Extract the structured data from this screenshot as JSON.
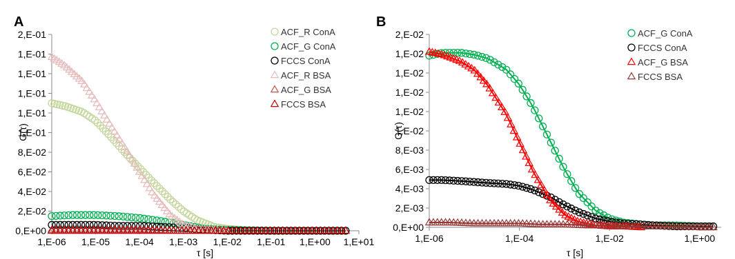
{
  "chart_data": [
    {
      "type": "scatter",
      "panel_label": "A",
      "xlabel": "τ [s]",
      "ylabel": "G(τ)",
      "x_scale": "log",
      "xlim": [
        1e-06,
        10
      ],
      "ylim": [
        0,
        0.2
      ],
      "x_ticks": [
        1e-06,
        1e-05,
        0.0001,
        0.001,
        0.01,
        0.1,
        1,
        10
      ],
      "x_tick_labels": [
        "1,E-06",
        "1,E-05",
        "1,E-04",
        "1,E-03",
        "1,E-02",
        "1,E-01",
        "1,E+00",
        "1,E+01"
      ],
      "y_ticks": [
        0,
        0.02,
        0.04,
        0.06,
        0.08,
        0.1,
        0.12,
        0.14,
        0.16,
        0.18,
        0.2
      ],
      "y_tick_labels": [
        "0,E+00",
        "2,E-02",
        "4,E-02",
        "6,E-02",
        "8,E-02",
        "1,E-01",
        "1,E-01",
        "1,E-01",
        "1,E-01",
        "1,E-01",
        "2,E-01"
      ],
      "grid": false,
      "legend_position": "top-right",
      "series": [
        {
          "name": "ACF_R ConA",
          "marker": "circle",
          "color": "#c3d69b",
          "x": [
            1e-06,
            2e-06,
            5e-06,
            1e-05,
            2e-05,
            5e-05,
            0.0001,
            0.0002,
            0.0005,
            0.001,
            0.002,
            0.005,
            0.01,
            0.02
          ],
          "y": [
            0.13,
            0.127,
            0.121,
            0.112,
            0.098,
            0.078,
            0.064,
            0.05,
            0.032,
            0.02,
            0.011,
            0.004,
            0.002,
            0.001
          ]
        },
        {
          "name": "ACF_G ConA",
          "marker": "circle",
          "color": "#00b050",
          "x": [
            1e-06,
            3e-06,
            1e-05,
            3e-05,
            0.0001,
            0.0003,
            0.001,
            0.003,
            0.01,
            0.1,
            1,
            5
          ],
          "y": [
            0.015,
            0.016,
            0.016,
            0.015,
            0.013,
            0.01,
            0.006,
            0.002,
            0.001,
            0.0,
            0.0,
            0.0
          ]
        },
        {
          "name": "FCCS ConA",
          "marker": "circle",
          "color": "#000000",
          "x": [
            1e-06,
            3e-06,
            1e-05,
            3e-05,
            0.0001,
            0.0003,
            0.001,
            0.003,
            0.01,
            0.1,
            1,
            5
          ],
          "y": [
            0.006,
            0.006,
            0.006,
            0.005,
            0.005,
            0.004,
            0.003,
            0.001,
            0.0,
            0.0,
            0.0,
            0.0
          ]
        },
        {
          "name": "ACF_R BSA",
          "marker": "triangle",
          "color": "#e6b9b8",
          "x": [
            1e-06,
            2e-06,
            5e-06,
            1e-05,
            2e-05,
            5e-05,
            0.0001,
            0.0002,
            0.0005,
            0.001,
            0.002,
            0.005,
            0.01
          ],
          "y": [
            0.177,
            0.168,
            0.152,
            0.132,
            0.11,
            0.082,
            0.06,
            0.038,
            0.016,
            0.006,
            0.002,
            0.001,
            0.0
          ]
        },
        {
          "name": "ACF_G BSA",
          "marker": "triangle",
          "color": "#c0504d",
          "x": [
            1e-06,
            1e-05,
            0.0001,
            0.001,
            0.01,
            0.1,
            1,
            5
          ],
          "y": [
            0.001,
            0.001,
            0.001,
            0.0,
            0.0,
            0.0,
            0.0,
            0.0
          ]
        },
        {
          "name": "FCCS BSA",
          "marker": "triangle",
          "color": "#c00000",
          "x": [
            1e-06,
            1e-05,
            0.0001,
            0.001,
            0.01,
            0.1,
            1,
            5
          ],
          "y": [
            0.0,
            0.0,
            0.0,
            0.0,
            0.0,
            0.0,
            0.0,
            0.0
          ]
        }
      ]
    },
    {
      "type": "scatter",
      "panel_label": "B",
      "xlabel": "τ [s]",
      "ylabel": "G(τ)",
      "x_scale": "log",
      "xlim": [
        1e-06,
        3
      ],
      "ylim": [
        0,
        0.02
      ],
      "x_ticks": [
        1e-06,
        0.0001,
        0.01,
        1
      ],
      "x_tick_labels": [
        "1,E-06",
        "1,E-04",
        "1,E-02",
        "1,E+00"
      ],
      "y_ticks": [
        0,
        0.002,
        0.004,
        0.006,
        0.008,
        0.01,
        0.012,
        0.014,
        0.016,
        0.018,
        0.02
      ],
      "y_tick_labels": [
        "0,E+00",
        "2,E-03",
        "4,E-03",
        "6,E-03",
        "8,E-03",
        "1,E-02",
        "1,E-02",
        "1,E-02",
        "1,E-02",
        "1,E-02",
        "2,E-02"
      ],
      "grid": false,
      "legend_position": "top-right",
      "series": [
        {
          "name": "ACF_G ConA",
          "marker": "circle",
          "color": "#00b050",
          "fit_line": true,
          "x": [
            1e-06,
            2e-06,
            5e-06,
            1e-05,
            2e-05,
            5e-05,
            0.0001,
            0.0002,
            0.0005,
            0.001,
            0.002,
            0.005,
            0.01,
            0.02,
            0.05,
            0.1,
            0.3,
            1,
            2
          ],
          "y": [
            0.0178,
            0.0181,
            0.0181,
            0.0179,
            0.0175,
            0.0164,
            0.0148,
            0.0125,
            0.0088,
            0.006,
            0.0036,
            0.0017,
            0.0009,
            0.0005,
            0.0003,
            0.0002,
            0.0002,
            0.0001,
            0.0001
          ]
        },
        {
          "name": "FCCS ConA",
          "marker": "circle",
          "color": "#000000",
          "fit_line": true,
          "x": [
            1e-06,
            2e-06,
            5e-06,
            1e-05,
            2e-05,
            5e-05,
            0.0001,
            0.0002,
            0.0005,
            0.001,
            0.002,
            0.005,
            0.01,
            0.02,
            0.05,
            0.1,
            0.3,
            1,
            2
          ],
          "y": [
            0.0049,
            0.0049,
            0.0048,
            0.0047,
            0.0046,
            0.0045,
            0.0043,
            0.0039,
            0.0031,
            0.0023,
            0.0016,
            0.0009,
            0.0006,
            0.0004,
            0.0003,
            0.0002,
            0.0001,
            0.0001,
            0.0001
          ]
        },
        {
          "name": "ACF_G BSA",
          "marker": "triangle",
          "color": "#ff0000",
          "fit_line": true,
          "x": [
            1e-06,
            2e-06,
            5e-06,
            1e-05,
            2e-05,
            5e-05,
            0.0001,
            0.0002,
            0.0005,
            0.001,
            0.002,
            0.005,
            0.01,
            0.02,
            0.05
          ],
          "y": [
            0.0182,
            0.0179,
            0.0172,
            0.0163,
            0.0147,
            0.0118,
            0.0088,
            0.0058,
            0.0027,
            0.0013,
            0.0006,
            0.0002,
            0.0001,
            0.0001,
            0.0
          ]
        },
        {
          "name": "FCCS BSA",
          "marker": "triangle",
          "color": "#953735",
          "fit_line": true,
          "x": [
            1e-06,
            3e-06,
            1e-05,
            3e-05,
            0.0001,
            0.0003,
            0.001,
            0.003,
            0.01,
            0.03,
            0.1,
            0.3,
            1,
            2
          ],
          "y": [
            0.0005,
            0.0005,
            0.0004,
            0.0004,
            0.0004,
            0.0003,
            0.0003,
            0.0002,
            0.0002,
            0.0001,
            0.0001,
            0.0001,
            0.0,
            0.0
          ]
        }
      ]
    }
  ]
}
